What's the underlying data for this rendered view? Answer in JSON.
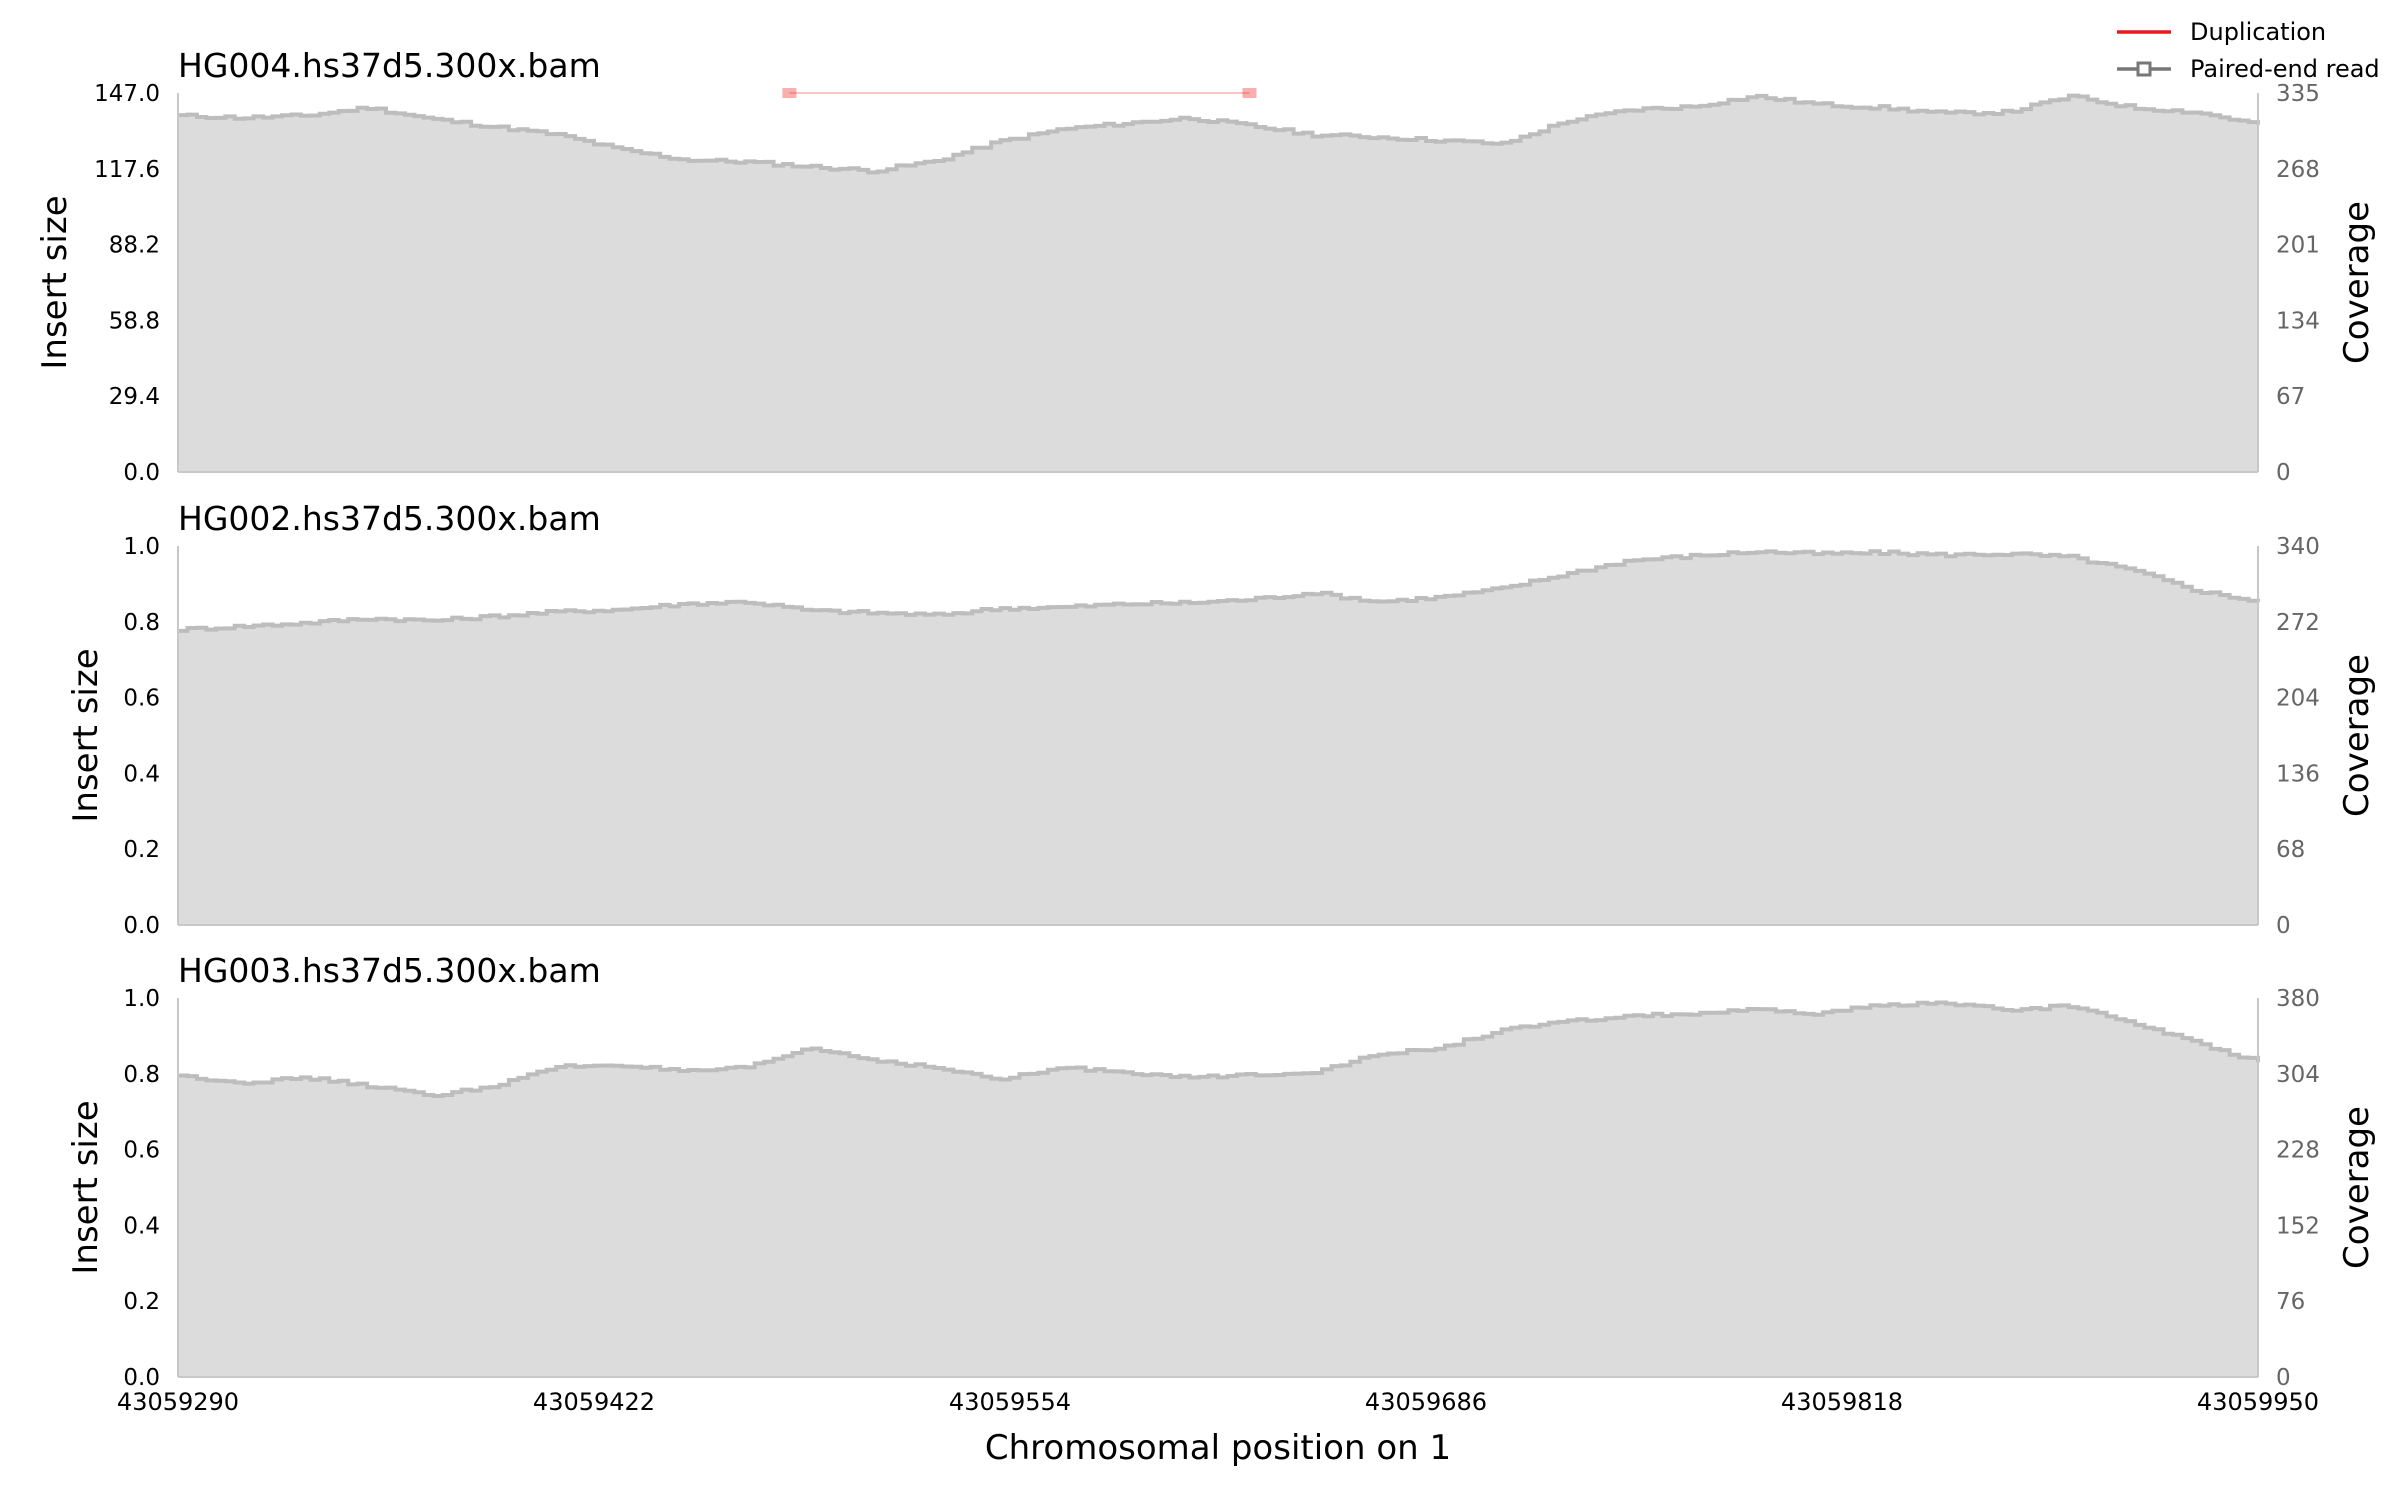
{
  "legend": [
    {
      "label": "Duplication",
      "color": "#e8191c",
      "style": "line"
    },
    {
      "label": "Paired-end read",
      "color": "#777777",
      "style": "line-square"
    }
  ],
  "colors": {
    "coverage_fill": "#dcdcdc",
    "coverage_line": "#bdbdbd",
    "axis_line": "#c8c8c8",
    "duplication": "#e8191c",
    "right_tick_text": "#666666",
    "text": "#000000"
  },
  "chart_data": {
    "type": "area",
    "xlabel": "Chromosomal position on 1",
    "xlim": [
      43059290,
      43059950
    ],
    "xticks": [
      "43059290",
      "43059422",
      "43059554",
      "43059686",
      "43059818",
      "43059950"
    ],
    "grid": false,
    "legend_position": "top-right",
    "panels": [
      {
        "title": "HG004.hs37d5.300x.bam",
        "ylabel_left": "Insert size",
        "ylabel_right": "Coverage",
        "ylim_left": [
          0,
          147.0
        ],
        "yticks_left": [
          "0.0",
          "29.4",
          "58.8",
          "88.2",
          "117.6",
          "147.0"
        ],
        "ylim_right": [
          0,
          335
        ],
        "yticks_right": [
          "0",
          "67",
          "134",
          "201",
          "268",
          "335"
        ],
        "coverage": {
          "x": [
            43059290,
            43059310,
            43059330,
            43059350,
            43059370,
            43059390,
            43059410,
            43059430,
            43059450,
            43059470,
            43059490,
            43059510,
            43059530,
            43059550,
            43059570,
            43059590,
            43059610,
            43059630,
            43059650,
            43059670,
            43059690,
            43059710,
            43059730,
            43059750,
            43059770,
            43059790,
            43059810,
            43059830,
            43059850,
            43059870,
            43059890,
            43059910,
            43059930,
            43059950
          ],
          "y": [
            315,
            313,
            315,
            322,
            312,
            305,
            298,
            285,
            276,
            274,
            270,
            266,
            275,
            292,
            303,
            308,
            313,
            306,
            298,
            296,
            293,
            290,
            310,
            320,
            323,
            332,
            325,
            322,
            317,
            318,
            332,
            322,
            318,
            307
          ]
        },
        "reads": [
          {
            "type": "Duplication",
            "start": 43059484,
            "end": 43059630,
            "insert_size": 147
          }
        ]
      },
      {
        "title": "HG002.hs37d5.300x.bam",
        "ylabel_left": "Insert size",
        "ylabel_right": "Coverage",
        "ylim_left": [
          0,
          1.0
        ],
        "yticks_left": [
          "0.0",
          "0.2",
          "0.4",
          "0.6",
          "0.8",
          "1.0"
        ],
        "ylim_right": [
          0,
          340
        ],
        "yticks_right": [
          "0",
          "68",
          "136",
          "204",
          "272",
          "340"
        ],
        "coverage": {
          "x": [
            43059290,
            43059310,
            43059330,
            43059350,
            43059370,
            43059390,
            43059410,
            43059430,
            43059450,
            43059470,
            43059490,
            43059510,
            43059530,
            43059550,
            43059570,
            43059590,
            43059610,
            43059630,
            43059650,
            43059670,
            43059690,
            43059710,
            43059730,
            43059750,
            43059770,
            43059790,
            43059810,
            43059830,
            43059850,
            43059870,
            43059890,
            43059910,
            43059930,
            43059950
          ],
          "y": [
            265,
            268,
            271,
            275,
            273,
            277,
            281,
            283,
            288,
            290,
            282,
            280,
            278,
            284,
            285,
            288,
            289,
            292,
            298,
            290,
            294,
            302,
            315,
            327,
            331,
            335,
            333,
            334,
            332,
            333,
            330,
            318,
            300,
            290
          ]
        }
      },
      {
        "title": "HG003.hs37d5.300x.bam",
        "ylabel_left": "Insert size",
        "ylabel_right": "Coverage",
        "xlabel": "Chromosomal position on 1",
        "ylim_left": [
          0,
          1.0
        ],
        "yticks_left": [
          "0.0",
          "0.2",
          "0.4",
          "0.6",
          "0.8",
          "1.0"
        ],
        "ylim_right": [
          0,
          380
        ],
        "yticks_right": [
          "0",
          "76",
          "152",
          "228",
          "304",
          "380"
        ],
        "coverage": {
          "x": [
            43059290,
            43059310,
            43059330,
            43059350,
            43059370,
            43059390,
            43059410,
            43059430,
            43059450,
            43059470,
            43059490,
            43059510,
            43059530,
            43059550,
            43059570,
            43059590,
            43059610,
            43059630,
            43059650,
            43059670,
            43059690,
            43059710,
            43059730,
            43059750,
            43059770,
            43059790,
            43059810,
            43059830,
            43059850,
            43059870,
            43059890,
            43059910,
            43059930,
            43059950
          ],
          "y": [
            302,
            295,
            300,
            292,
            282,
            292,
            311,
            313,
            306,
            310,
            330,
            318,
            310,
            298,
            310,
            306,
            300,
            303,
            306,
            323,
            330,
            348,
            356,
            362,
            364,
            368,
            364,
            373,
            375,
            368,
            372,
            355,
            335,
            316
          ]
        }
      }
    ]
  }
}
